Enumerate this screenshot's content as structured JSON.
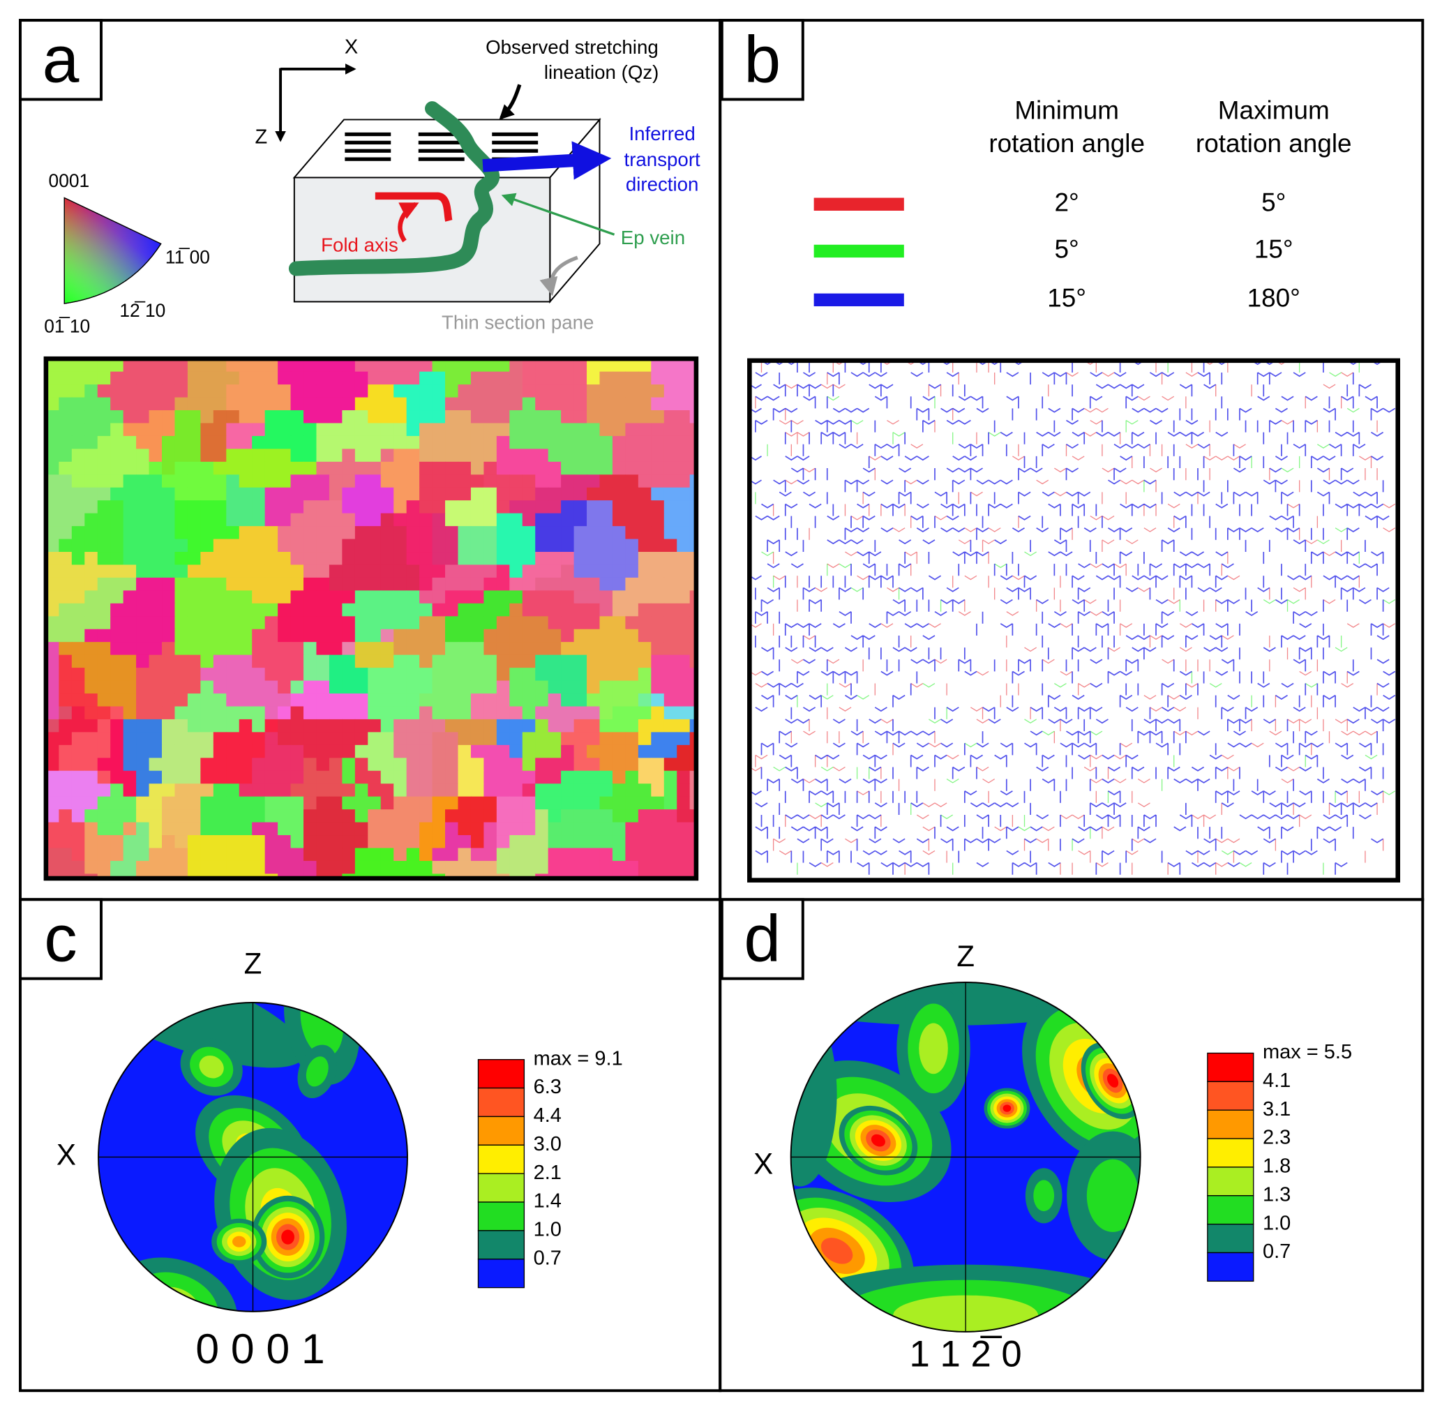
{
  "panel_a": {
    "label": "a",
    "axis_x": "X",
    "axis_z": "Z",
    "ipf_key": {
      "top": "0001",
      "right": "11̅ 00",
      "bottom_left": "01̅ 10",
      "bottom": "12̅ 10"
    },
    "lineation": [
      "Observed stretching",
      "lineation (Qz)"
    ],
    "transport": [
      "Inferred",
      "transport",
      "direction"
    ],
    "fold_axis": "Fold axis",
    "vein": "Ep vein",
    "pane": "Thin section pane"
  },
  "panel_b": {
    "label": "b",
    "headers": [
      [
        "Minimum",
        "rotation angle"
      ],
      [
        "Maximum",
        "rotation angle"
      ]
    ],
    "rows": [
      {
        "color": "#e8242c",
        "min": "2°",
        "max": "5°"
      },
      {
        "color": "#22ee22",
        "min": "5°",
        "max": "15°"
      },
      {
        "color": "#1a1ae6",
        "min": "15°",
        "max": "180°"
      }
    ]
  },
  "panel_c": {
    "label": "c",
    "axis_z": "Z",
    "axis_x": "X",
    "max": "max = 9.1",
    "levels": [
      "6.3",
      "4.4",
      "3.0",
      "2.1",
      "1.4",
      "1.0",
      "0.7"
    ],
    "caption": "0 0 0 1"
  },
  "panel_d": {
    "label": "d",
    "axis_z": "Z",
    "axis_x": "X",
    "max": "max = 5.5",
    "levels": [
      "4.1",
      "3.1",
      "2.3",
      "1.8",
      "1.3",
      "1.0",
      "0.7"
    ],
    "caption": "1 1 2̅ 0"
  }
}
